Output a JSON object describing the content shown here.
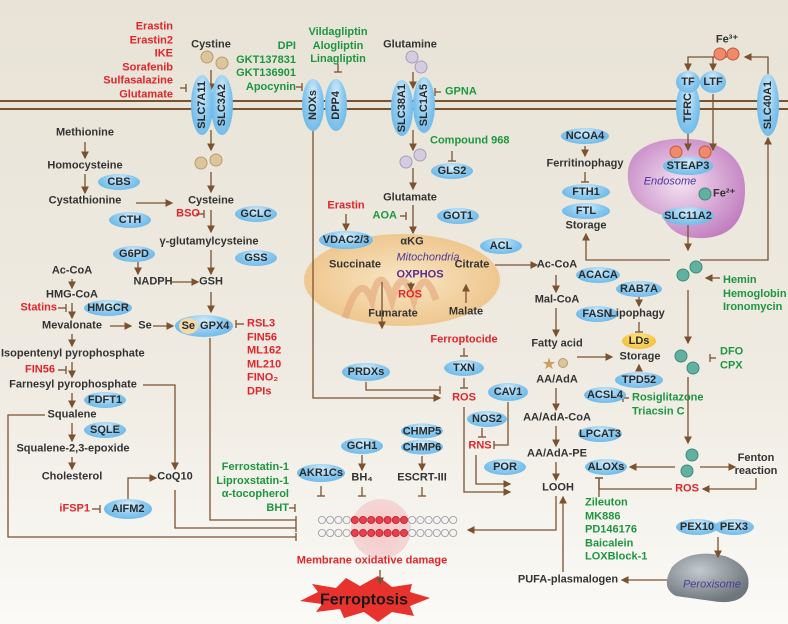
{
  "colors": {
    "inducer": "#e3242b",
    "inhibitor": "#1d9640",
    "protein": "#5aaee3",
    "membrane": "#7b5230",
    "mitochondria": "#f2d3a0",
    "endosome": "#c88cc6",
    "peroxisome": "#8e969c",
    "lipid_droplet": "#f3c030",
    "ferroptosis": "#e8322e"
  },
  "proteins": {
    "slc7a11": "SLC7A11",
    "slc3a2": "SLC3A2",
    "noxs": "NOXs",
    "dpp4": "DPP4",
    "slc38a1": "SLC38A1",
    "slc1a5": "SLC1A5",
    "tf": "TF",
    "ltf": "LTF",
    "tfrc": "TFRC",
    "slc40a1": "SLC40A1",
    "cbs": "CBS",
    "cth": "CTH",
    "gclc": "GCLC",
    "g6pd": "G6PD",
    "gss": "GSS",
    "hmgcr": "HMGCR",
    "se": "Se",
    "gpx4": "GPX4",
    "fdft1": "FDFT1",
    "sqle": "SQLE",
    "aifm2": "AIFM2",
    "gls2": "GLS2",
    "got1": "GOT1",
    "vdac": "VDAC2/3",
    "acl": "ACL",
    "ncoa4": "NCOA4",
    "fth1": "FTH1",
    "ftl": "FTL",
    "steap3": "STEAP3",
    "slc11a2": "SLC11A2",
    "acaca": "ACACA",
    "rab7a": "RAB7A",
    "fasn": "FASN",
    "prdxs": "PRDXs",
    "txn": "TXN",
    "cav1": "CAV1",
    "nos2": "NOS2",
    "tpd52": "TPD52",
    "acsl4": "ACSL4",
    "lpcat3": "LPCAT3",
    "por": "POR",
    "aloxs": "ALOXs",
    "akr1cs": "AKR1Cs",
    "gch1": "GCH1",
    "chmp5": "CHMP5",
    "chmp6": "CHMP6",
    "pex10": "PEX10",
    "pex3": "PEX3",
    "lds": "LDs"
  },
  "metabolites": {
    "cystine": "Cystine",
    "glutamine": "Glutamine",
    "methionine": "Methionine",
    "homocysteine": "Homocysteine",
    "cystathionine": "Cystathionine",
    "cysteine": "Cysteine",
    "gglu": "γ-glutamylcysteine",
    "accoa1": "Ac-CoA",
    "nadph": "NADPH",
    "gsh": "GSH",
    "hmgcoa": "HMG-CoA",
    "mevalonate": "Mevalonate",
    "se": "Se",
    "ipp": "Isopentenyl pyrophosphate",
    "fpp": "Farnesyl pyrophosphate",
    "squalene": "Squalene",
    "epoxide": "Squalene-2,3-epoxide",
    "cholesterol": "Cholesterol",
    "coq10": "CoQ10",
    "glutamate": "Glutamate",
    "akg": "αKG",
    "succinate": "Succinate",
    "citrate": "Citrate",
    "fumarate": "Fumarate",
    "malate": "Malate",
    "accoa2": "Ac-CoA",
    "malcoa": "Mal-CoA",
    "fattyacid": "Fatty acid",
    "aa": "AA/AdA",
    "aacoa": "AA/AdA-CoA",
    "aape": "AA/AdA-PE",
    "looh": "LOOH",
    "ferritinophagy": "Ferritinophagy",
    "storage1": "Storage",
    "lipophagy": "Lipophagy",
    "storage2": "Storage",
    "bh4": "BH₄",
    "escrt": "ESCRT-III",
    "fenton": [
      "Fenton",
      "reaction"
    ],
    "pufa": "PUFA-plasmalogen",
    "fe3": "Fe³⁺",
    "fe2": "Fe²⁺",
    "oxphos": "OXPHOS"
  },
  "compartments": {
    "endosome": "Endosome",
    "mitochondria": "Mitochondria",
    "peroxisome": "Peroxisome"
  },
  "inducers": {
    "system_xc": [
      "Erastin",
      "Erastin2",
      "IKE",
      "Sorafenib",
      "Sulfasalazine",
      "Glutamate"
    ],
    "bso": "BSO",
    "statins": "Statins",
    "fin56": "FIN56",
    "gpx4": [
      "RSL3",
      "FIN56",
      "ML162",
      "ML210",
      "FINO₂",
      "DPIs"
    ],
    "ifsp1": "iFSP1",
    "erastin": "Erastin",
    "ros_mito": "ROS",
    "ferroptocide": "Ferroptocide",
    "ros": "ROS",
    "rns": "RNS",
    "ros_fenton": "ROS"
  },
  "inhibitors": {
    "nox": [
      "DPI",
      "GKT137831",
      "GKT136901",
      "Apocynin"
    ],
    "dpp4": [
      "Vildagliptin",
      "Alogliptin",
      "Linagliptin"
    ],
    "gpna": "GPNA",
    "compound968": "Compound 968",
    "aoa": "AOA",
    "iron": [
      "Hemin",
      "Hemoglobin",
      "Ironomycin"
    ],
    "chelators": [
      "DFO",
      "CPX"
    ],
    "acsl4": [
      "Rosiglitazone",
      "Triacsin C"
    ],
    "lox": [
      "Zileuton",
      "MK886",
      "PD146176",
      "Baicalein",
      "LOXBlock-1"
    ],
    "rta": [
      "Ferrostatin-1",
      "Liproxstatin-1",
      "α-tocopherol",
      "BHT"
    ]
  },
  "outcome": {
    "damage": "Membrane oxidative damage",
    "ferroptosis": "Ferroptosis"
  }
}
